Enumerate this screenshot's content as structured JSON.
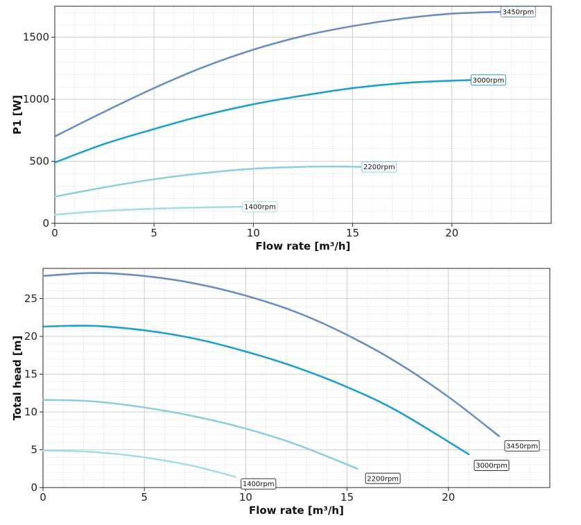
{
  "chart_data": [
    {
      "type": "line",
      "xlabel": "Flow rate [m³/h]",
      "ylabel": "P1 [W]",
      "xlim": [
        0,
        25
      ],
      "ylim": [
        0,
        1750
      ],
      "xticks": [
        0,
        5,
        10,
        15,
        20
      ],
      "yticks": [
        0,
        500,
        1000,
        1500
      ],
      "grid": true,
      "series": [
        {
          "name": "3450rpm",
          "color": "#6a8ec0",
          "label_style": "light",
          "x": [
            0,
            2.5,
            5,
            7.5,
            10,
            12.5,
            15,
            17.5,
            20,
            22.5
          ],
          "y": [
            700,
            900,
            1090,
            1260,
            1400,
            1510,
            1590,
            1650,
            1690,
            1705
          ]
        },
        {
          "name": "3000rpm",
          "color": "#1e9fd0",
          "label_style": "light",
          "x": [
            0,
            2.5,
            5,
            7.5,
            10,
            12.5,
            15,
            17.5,
            20,
            21
          ],
          "y": [
            490,
            640,
            760,
            870,
            960,
            1030,
            1090,
            1130,
            1150,
            1155
          ]
        },
        {
          "name": "2200rpm",
          "color": "#8ccfe0",
          "label_style": "light",
          "x": [
            0,
            2.5,
            5,
            7.5,
            10,
            12.5,
            14,
            15.5
          ],
          "y": [
            215,
            290,
            355,
            405,
            440,
            455,
            458,
            455
          ]
        },
        {
          "name": "1400rpm",
          "color": "#a8dbe8",
          "label_style": "light",
          "x": [
            0,
            2.5,
            5,
            7.5,
            9.5
          ],
          "y": [
            70,
            100,
            118,
            128,
            133
          ]
        }
      ]
    },
    {
      "type": "line",
      "xlabel": "Flow rate [m³/h]",
      "ylabel": "Total head [m]",
      "xlim": [
        0,
        25
      ],
      "ylim": [
        0,
        29
      ],
      "xticks": [
        0,
        5,
        10,
        15,
        20
      ],
      "yticks": [
        0,
        5,
        10,
        15,
        20,
        25
      ],
      "grid": true,
      "series": [
        {
          "name": "3450rpm",
          "color": "#6a8ec0",
          "label_style": "boxed",
          "x": [
            0,
            2.5,
            5,
            7.5,
            10,
            12.5,
            15,
            17.5,
            20,
            22.5
          ],
          "y": [
            28,
            28.4,
            28,
            27,
            25.4,
            23.2,
            20.2,
            16.5,
            12,
            6.8
          ]
        },
        {
          "name": "3000rpm",
          "color": "#1e9fd0",
          "label_style": "boxed",
          "x": [
            0,
            2.5,
            5,
            7.5,
            10,
            12.5,
            15,
            17.5,
            21
          ],
          "y": [
            21.3,
            21.4,
            20.8,
            19.7,
            18,
            15.9,
            13.3,
            10.1,
            4.4
          ]
        },
        {
          "name": "2200rpm",
          "color": "#8ccfe0",
          "label_style": "boxed",
          "x": [
            0,
            2.5,
            5,
            7.5,
            10,
            12.5,
            15.5
          ],
          "y": [
            11.6,
            11.4,
            10.6,
            9.4,
            7.8,
            5.7,
            2.5
          ]
        },
        {
          "name": "1400rpm",
          "color": "#a8dbe8",
          "label_style": "boxed",
          "x": [
            0,
            2.5,
            5,
            7.5,
            9.5
          ],
          "y": [
            4.9,
            4.7,
            4,
            2.8,
            1.4
          ]
        }
      ]
    }
  ]
}
